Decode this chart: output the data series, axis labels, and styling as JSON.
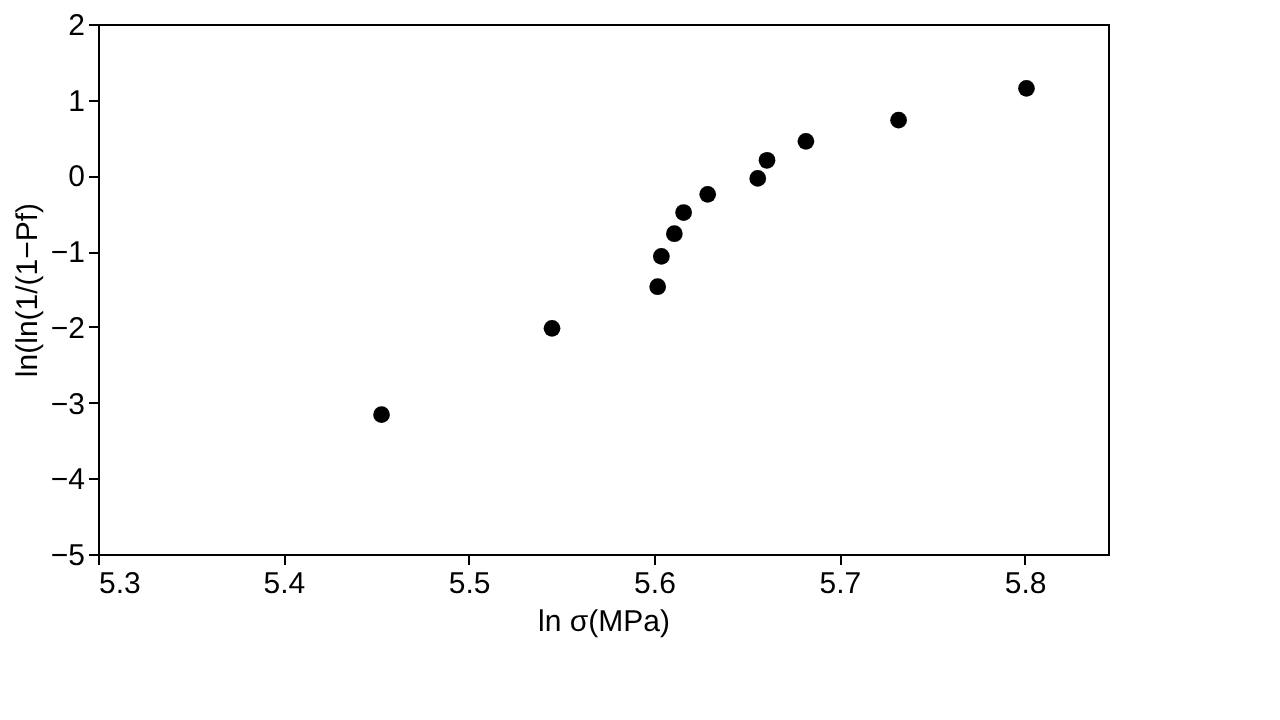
{
  "chart_data": {
    "type": "scatter",
    "xlabel": "ln σ(MPa)",
    "ylabel": "ln(ln(1/(1−Pf)",
    "x": [
      5.453,
      5.545,
      5.602,
      5.604,
      5.611,
      5.616,
      5.629,
      5.656,
      5.661,
      5.682,
      5.732,
      5.801
    ],
    "series": [
      {
        "color": "#000000",
        "values": [
          -3.16,
          -2.02,
          -1.47,
          -1.07,
          -0.77,
          -0.49,
          -0.25,
          -0.04,
          0.2,
          0.45,
          0.73,
          1.15
        ]
      }
    ],
    "xlim": [
      5.3,
      5.845
    ],
    "ylim": [
      -5,
      2
    ],
    "xticks": [
      5.3,
      5.4,
      5.5,
      5.6,
      5.7,
      5.8
    ],
    "yticks": [
      -5,
      -4,
      -3,
      -2,
      -1,
      0,
      1,
      2
    ],
    "grid": false,
    "legend": false,
    "marker": "circle"
  }
}
